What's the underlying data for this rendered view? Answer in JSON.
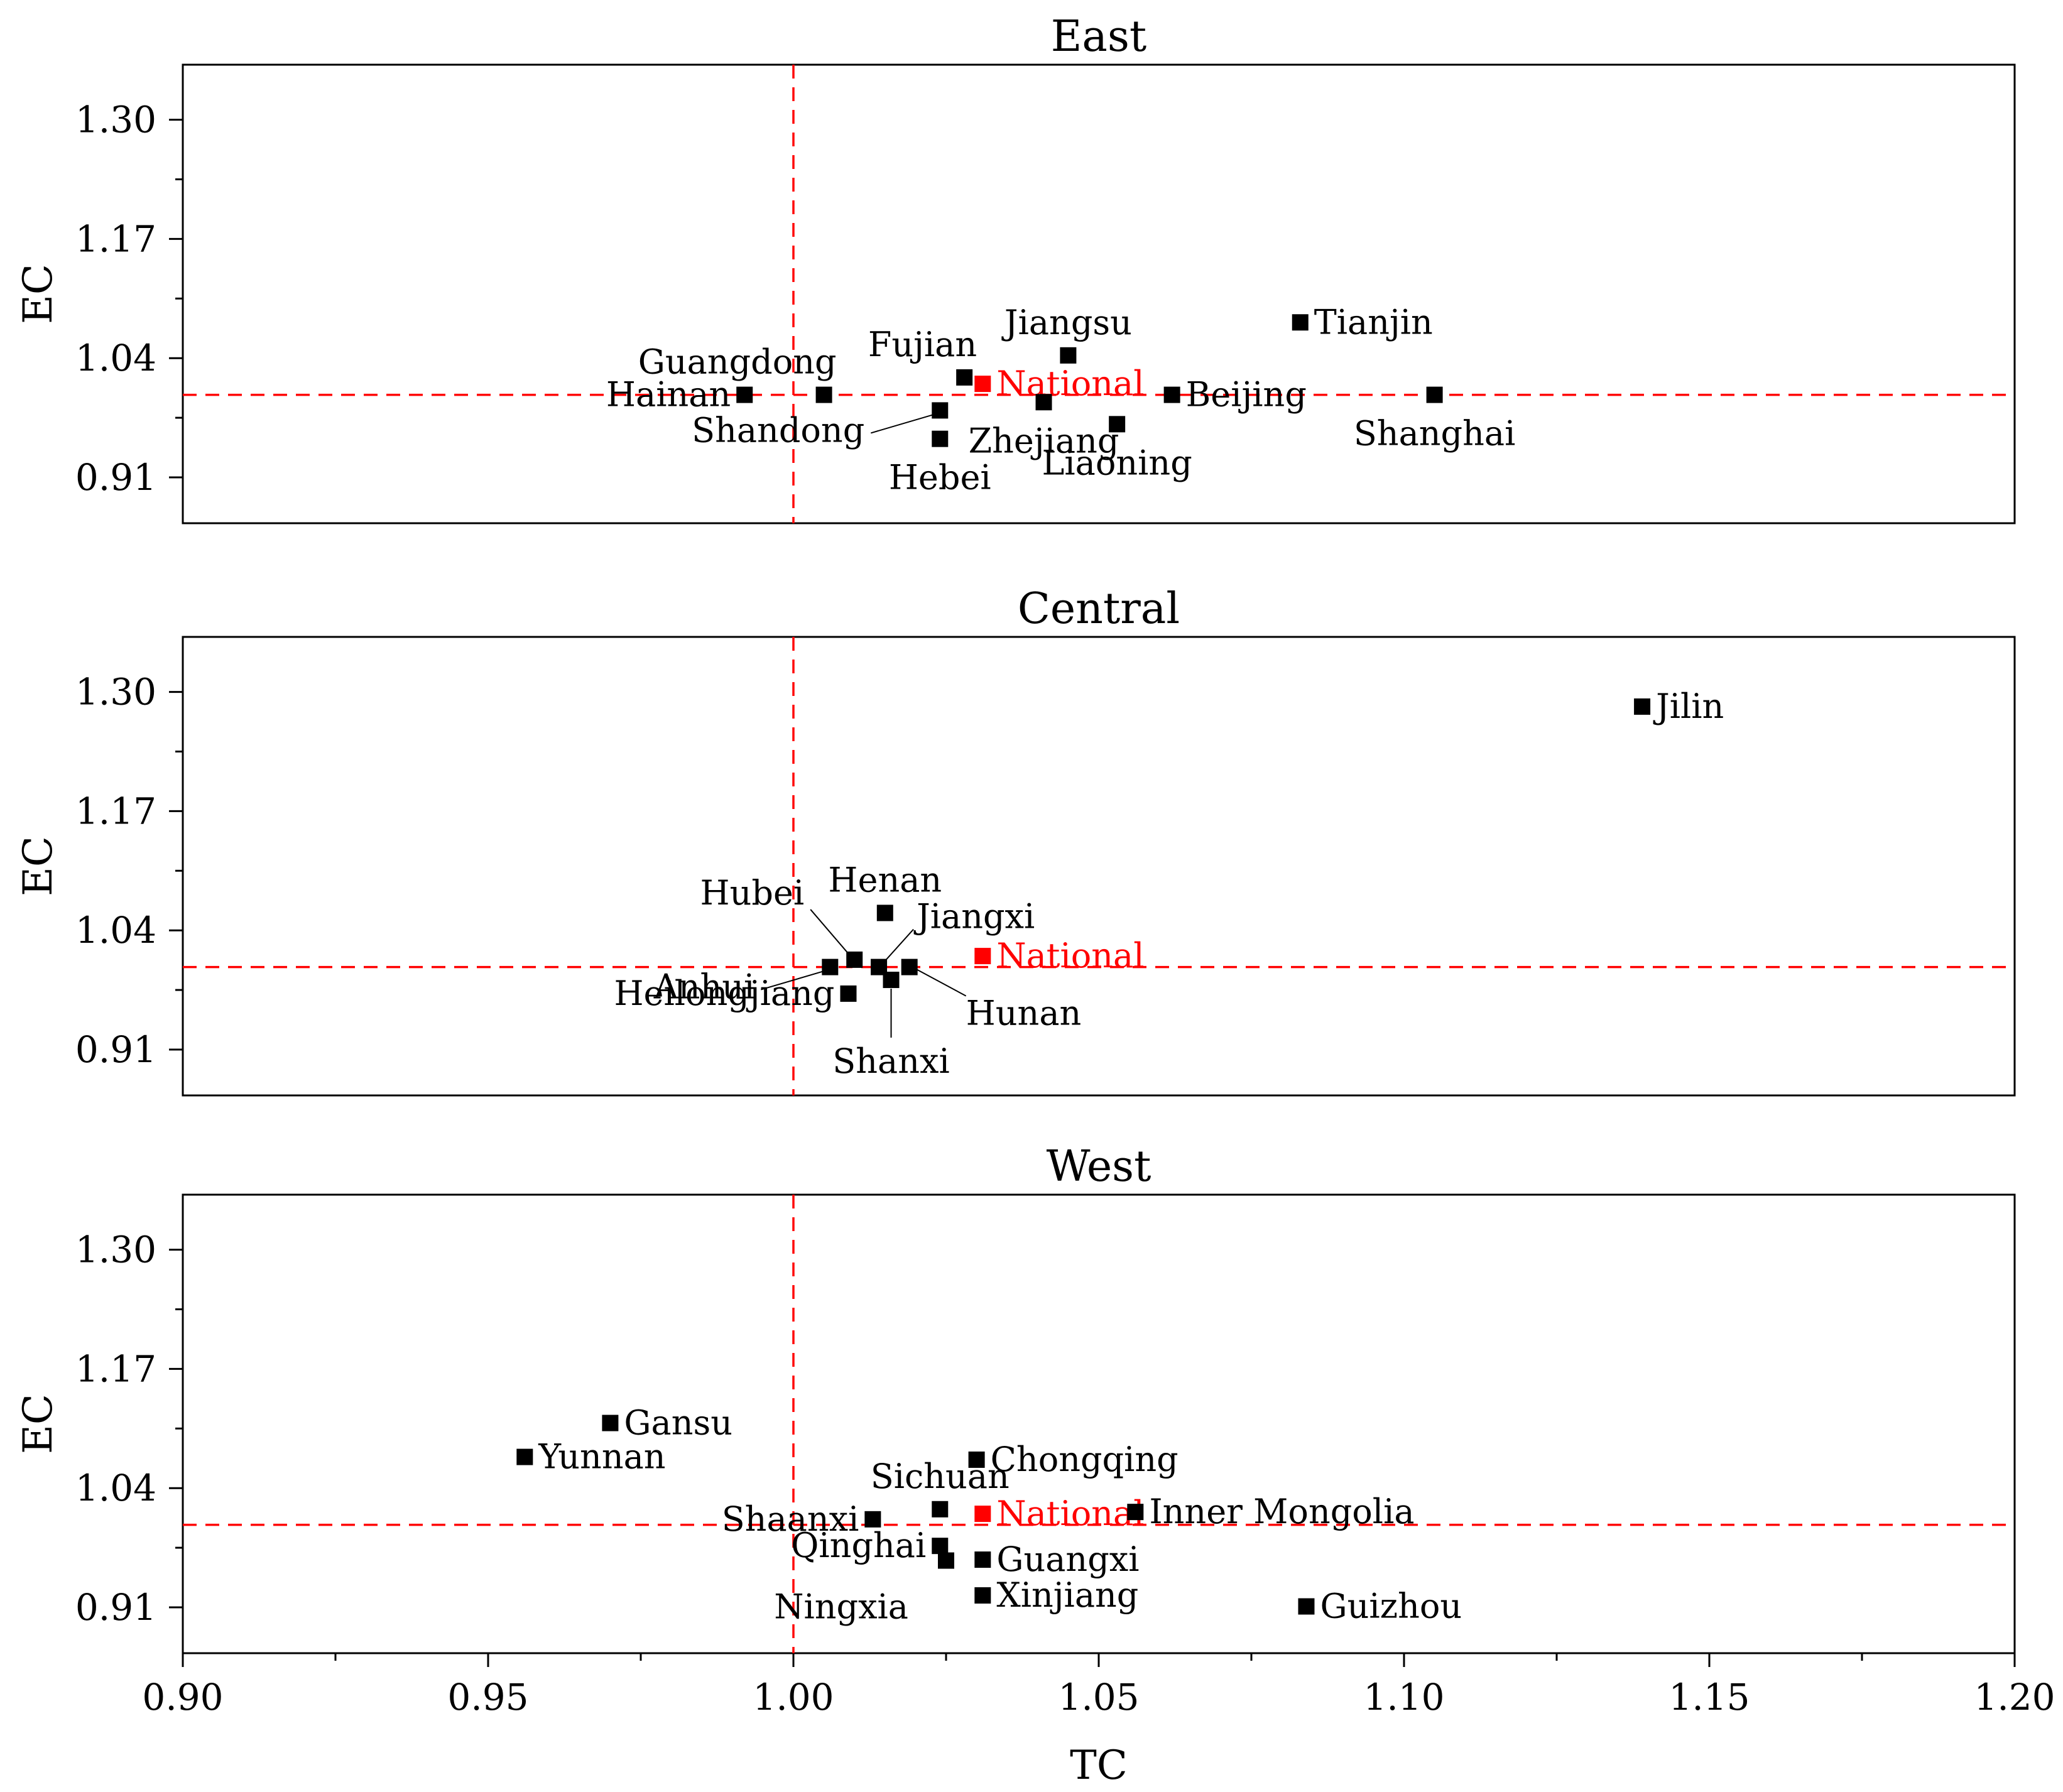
{
  "chart_data": {
    "type": "scatter",
    "x_label": "TC",
    "y_label": "EC",
    "xlim": [
      0.9,
      1.2
    ],
    "ylim": [
      0.86,
      1.36
    ],
    "x_ticks": [
      "0.90",
      "0.95",
      "1.00",
      "1.05",
      "1.10",
      "1.15",
      "1.20"
    ],
    "y_ticks": [
      "0.91",
      "1.04",
      "1.17",
      "1.30"
    ],
    "reference_lines": {
      "x": 1.0,
      "y": 1.0
    },
    "colors": {
      "point": "#000000",
      "national": "#ff0000",
      "reference": "#ff0000"
    },
    "panels": [
      {
        "title": "East",
        "points": [
          {
            "name": "Tianjin",
            "tc": 1.083,
            "ec": 1.079,
            "label_pos": "right"
          },
          {
            "name": "Jiangsu",
            "tc": 1.045,
            "ec": 1.043,
            "label_pos": "above"
          },
          {
            "name": "Fujian",
            "tc": 1.028,
            "ec": 1.019,
            "label_pos": "above-left"
          },
          {
            "name": "National",
            "tc": 1.031,
            "ec": 1.012,
            "label_pos": "right",
            "national": true
          },
          {
            "name": "Guangdong",
            "tc": 1.005,
            "ec": 1.0,
            "label_pos": "above-left"
          },
          {
            "name": "Hainan",
            "tc": 0.992,
            "ec": 1.0,
            "label_pos": "left"
          },
          {
            "name": "Beijing",
            "tc": 1.062,
            "ec": 1.0,
            "label_pos": "right"
          },
          {
            "name": "Shanghai",
            "tc": 1.105,
            "ec": 1.0,
            "label_pos": "below"
          },
          {
            "name": "Zhejiang",
            "tc": 1.041,
            "ec": 0.992,
            "label_pos": "below"
          },
          {
            "name": "Shandong",
            "tc": 1.024,
            "ec": 0.983,
            "label_pos": "leader-left"
          },
          {
            "name": "Liaoning",
            "tc": 1.053,
            "ec": 0.968,
            "label_pos": "below"
          },
          {
            "name": "Hebei",
            "tc": 1.024,
            "ec": 0.952,
            "label_pos": "below"
          }
        ]
      },
      {
        "title": "Central",
        "points": [
          {
            "name": "Jilin",
            "tc": 1.139,
            "ec": 1.284,
            "label_pos": "right"
          },
          {
            "name": "Henan",
            "tc": 1.015,
            "ec": 1.059,
            "label_pos": "above"
          },
          {
            "name": "National",
            "tc": 1.031,
            "ec": 1.012,
            "label_pos": "right",
            "national": true
          },
          {
            "name": "Hubei",
            "tc": 1.01,
            "ec": 1.008,
            "label_pos": "leader-up-left"
          },
          {
            "name": "Jiangxi",
            "tc": 1.014,
            "ec": 1.0,
            "label_pos": "leader-up-right"
          },
          {
            "name": "Anhui",
            "tc": 1.006,
            "ec": 1.0,
            "label_pos": "leader-left"
          },
          {
            "name": "Hunan",
            "tc": 1.019,
            "ec": 1.0,
            "label_pos": "leader-down-right"
          },
          {
            "name": "Shanxi",
            "tc": 1.016,
            "ec": 0.986,
            "label_pos": "leader-down"
          },
          {
            "name": "Heilongjiang",
            "tc": 1.009,
            "ec": 0.971,
            "label_pos": "left"
          }
        ]
      },
      {
        "title": "West",
        "points": [
          {
            "name": "Gansu",
            "tc": 0.97,
            "ec": 1.111,
            "label_pos": "right"
          },
          {
            "name": "Yunnan",
            "tc": 0.956,
            "ec": 1.074,
            "label_pos": "right"
          },
          {
            "name": "Chongqing",
            "tc": 1.03,
            "ec": 1.071,
            "label_pos": "right"
          },
          {
            "name": "Sichuan",
            "tc": 1.024,
            "ec": 1.017,
            "label_pos": "above"
          },
          {
            "name": "National",
            "tc": 1.031,
            "ec": 1.012,
            "label_pos": "right",
            "national": true
          },
          {
            "name": "Inner Mongolia",
            "tc": 1.056,
            "ec": 1.014,
            "label_pos": "right"
          },
          {
            "name": "Shaanxi",
            "tc": 1.013,
            "ec": 1.006,
            "label_pos": "left"
          },
          {
            "name": "Qinghai",
            "tc": 1.024,
            "ec": 0.977,
            "label_pos": "left"
          },
          {
            "name": "Guangxi",
            "tc": 1.031,
            "ec": 0.962,
            "label_pos": "right"
          },
          {
            "name": "Ningxia",
            "tc": 1.025,
            "ec": 0.961,
            "label_pos": "below-left"
          },
          {
            "name": "Xinjiang",
            "tc": 1.031,
            "ec": 0.923,
            "label_pos": "right"
          },
          {
            "name": "Guizhou",
            "tc": 1.084,
            "ec": 0.911,
            "label_pos": "right"
          }
        ]
      }
    ]
  }
}
